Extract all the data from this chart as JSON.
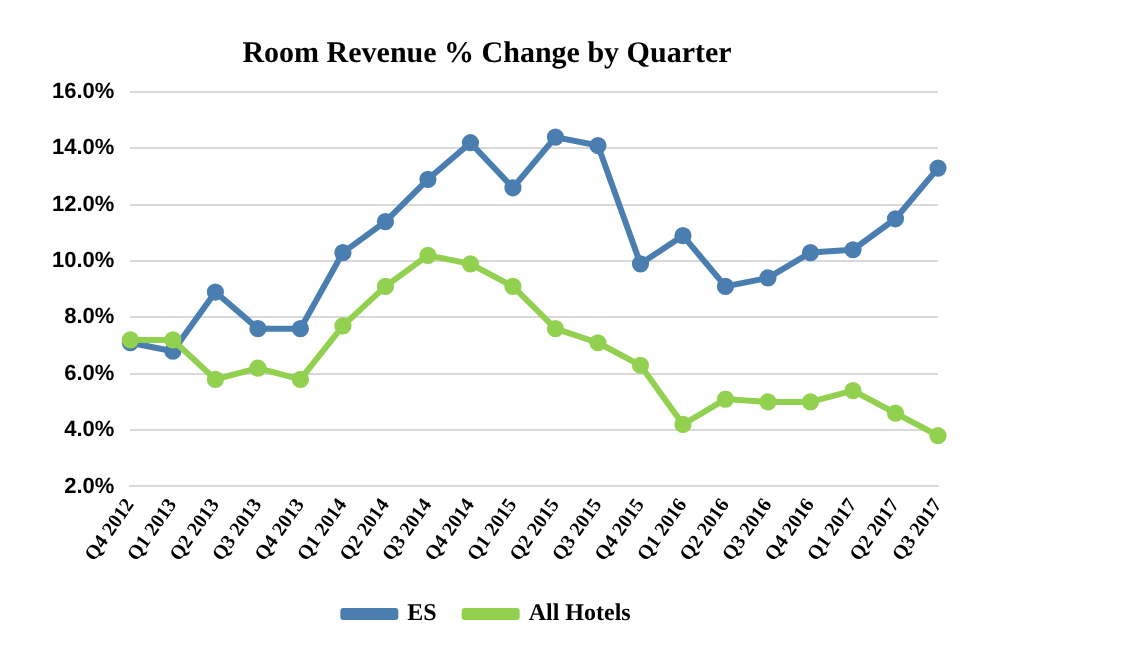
{
  "chart_data": {
    "type": "line",
    "title": "Room Revenue % Change by Quarter",
    "categories": [
      "Q4 2012",
      "Q1 2013",
      "Q2 2013",
      "Q3 2013",
      "Q4 2013",
      "Q1 2014",
      "Q2 2014",
      "Q3 2014",
      "Q4 2014",
      "Q1 2015",
      "Q2 2015",
      "Q3 2015",
      "Q4 2015",
      "Q1 2016",
      "Q2 2016",
      "Q3 2016",
      "Q4 2016",
      "Q1 2017",
      "Q2 2017",
      "Q3 2017"
    ],
    "series": [
      {
        "name": "ES",
        "color": "#4a7eb0",
        "values": [
          7.1,
          6.8,
          8.9,
          7.6,
          7.6,
          10.3,
          11.4,
          12.9,
          14.2,
          12.6,
          14.4,
          14.1,
          9.9,
          10.9,
          9.1,
          9.4,
          10.3,
          10.4,
          11.5,
          13.3
        ]
      },
      {
        "name": "All Hotels",
        "color": "#92d050",
        "values": [
          7.2,
          7.2,
          5.8,
          6.2,
          5.8,
          7.7,
          9.1,
          10.2,
          9.9,
          9.1,
          7.6,
          7.1,
          6.3,
          4.2,
          5.1,
          5.0,
          5.0,
          5.4,
          4.6,
          3.8
        ]
      }
    ],
    "ylim": [
      2,
      16
    ],
    "yticks": [
      {
        "value": 2,
        "label": "2.0%"
      },
      {
        "value": 4,
        "label": "4.0%"
      },
      {
        "value": 6,
        "label": "6.0%"
      },
      {
        "value": 8,
        "label": "8.0%"
      },
      {
        "value": 10,
        "label": "10.0%"
      },
      {
        "value": 12,
        "label": "12.0%"
      },
      {
        "value": 14,
        "label": "14.0%"
      },
      {
        "value": 16,
        "label": "16.0%"
      }
    ],
    "grid": "y",
    "legend": "bottom",
    "marker": "circle",
    "line_style": "solid"
  }
}
